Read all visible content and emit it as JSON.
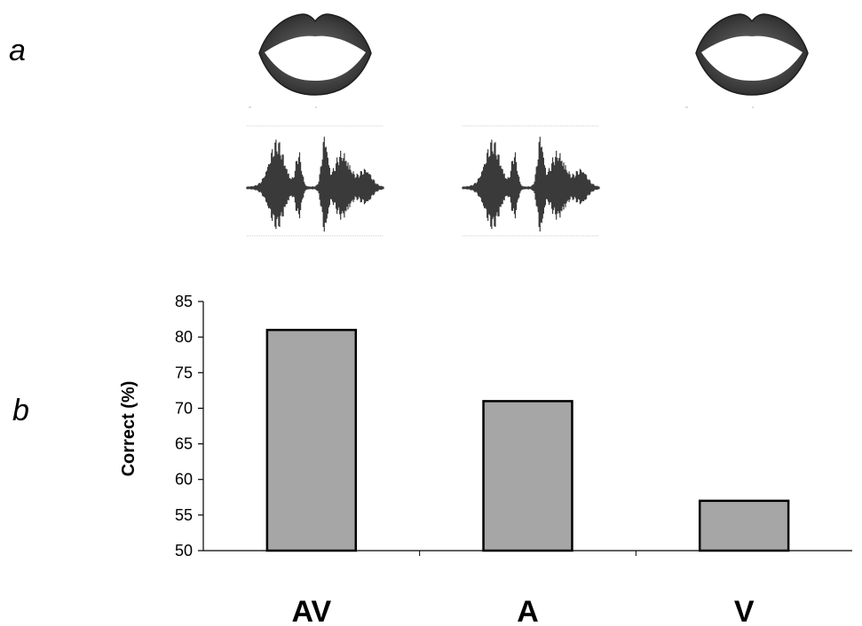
{
  "panels": {
    "a": "a",
    "b": "b"
  },
  "stimuli": {
    "lip_icon_name": "lips-icon",
    "waveform_icon_name": "waveform-icon",
    "columns": [
      {
        "condition": "AV",
        "lips": true,
        "audio": true
      },
      {
        "condition": "A",
        "lips": false,
        "audio": true
      },
      {
        "condition": "V",
        "lips": true,
        "audio": false
      }
    ]
  },
  "chart_data": {
    "type": "bar",
    "categories": [
      "AV",
      "A",
      "V"
    ],
    "values": [
      81,
      71,
      57
    ],
    "ylabel": "Correct (%)",
    "xlabel": "",
    "ylim": [
      50,
      85
    ],
    "yticks": [
      50,
      55,
      60,
      65,
      70,
      75,
      80,
      85
    ],
    "grid": false,
    "bar_color": "#a6a6a6",
    "bar_edge_color": "#000000"
  }
}
